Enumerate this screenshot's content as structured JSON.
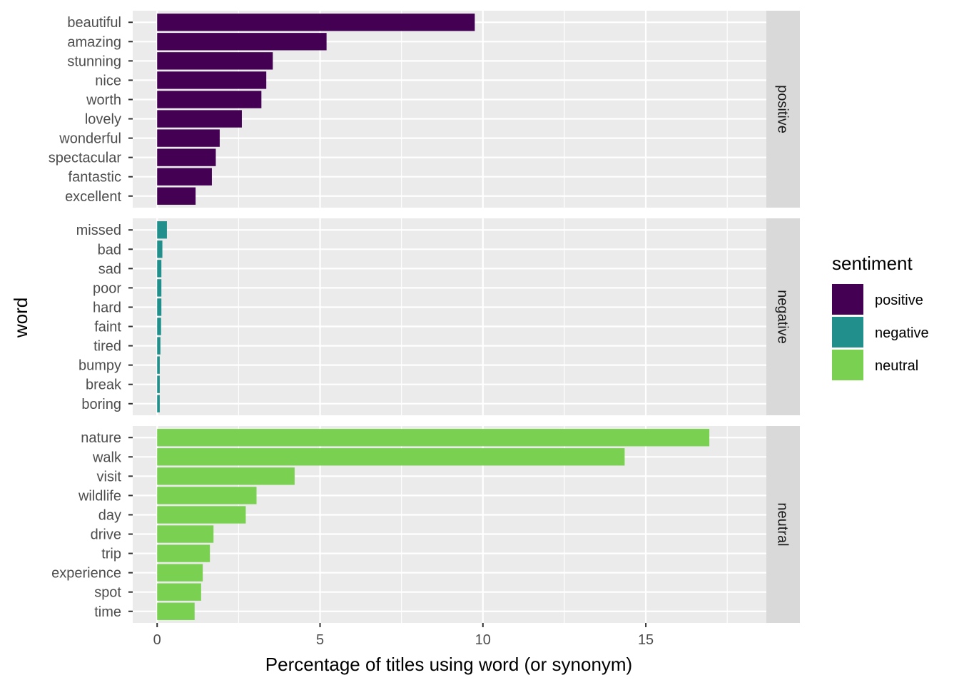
{
  "chart_data": {
    "type": "bar",
    "orientation": "horizontal",
    "facet": "sentiment",
    "xlabel": "Percentage of titles using word (or synonym)",
    "ylabel": "word",
    "xlim": [
      -0.75,
      18.7
    ],
    "xticks": [
      0,
      5,
      10,
      15
    ],
    "xtick_labels": [
      "0",
      "5",
      "10",
      "15"
    ],
    "grid": true,
    "legend": {
      "title": "sentiment",
      "position": "right",
      "entries": [
        {
          "label": "positive",
          "color": "#440154"
        },
        {
          "label": "negative",
          "color": "#21908C"
        },
        {
          "label": "neutral",
          "color": "#7AD151"
        }
      ]
    },
    "panels": [
      {
        "strip": "positive",
        "color": "#440154",
        "categories": [
          "beautiful",
          "amazing",
          "stunning",
          "nice",
          "worth",
          "lovely",
          "wonderful",
          "spectacular",
          "fantastic",
          "excellent"
        ],
        "values": [
          9.75,
          5.2,
          3.55,
          3.35,
          3.2,
          2.6,
          1.92,
          1.8,
          1.68,
          1.18
        ]
      },
      {
        "strip": "negative",
        "color": "#21908C",
        "categories": [
          "missed",
          "bad",
          "sad",
          "poor",
          "hard",
          "faint",
          "tired",
          "bumpy",
          "break",
          "boring"
        ],
        "values": [
          0.3,
          0.16,
          0.13,
          0.13,
          0.13,
          0.12,
          0.1,
          0.08,
          0.08,
          0.08
        ]
      },
      {
        "strip": "neutral",
        "color": "#7AD151",
        "categories": [
          "nature",
          "walk",
          "visit",
          "wildlife",
          "day",
          "drive",
          "trip",
          "experience",
          "spot",
          "time"
        ],
        "values": [
          16.95,
          14.35,
          4.22,
          3.05,
          2.72,
          1.73,
          1.62,
          1.4,
          1.35,
          1.15
        ]
      }
    ]
  }
}
